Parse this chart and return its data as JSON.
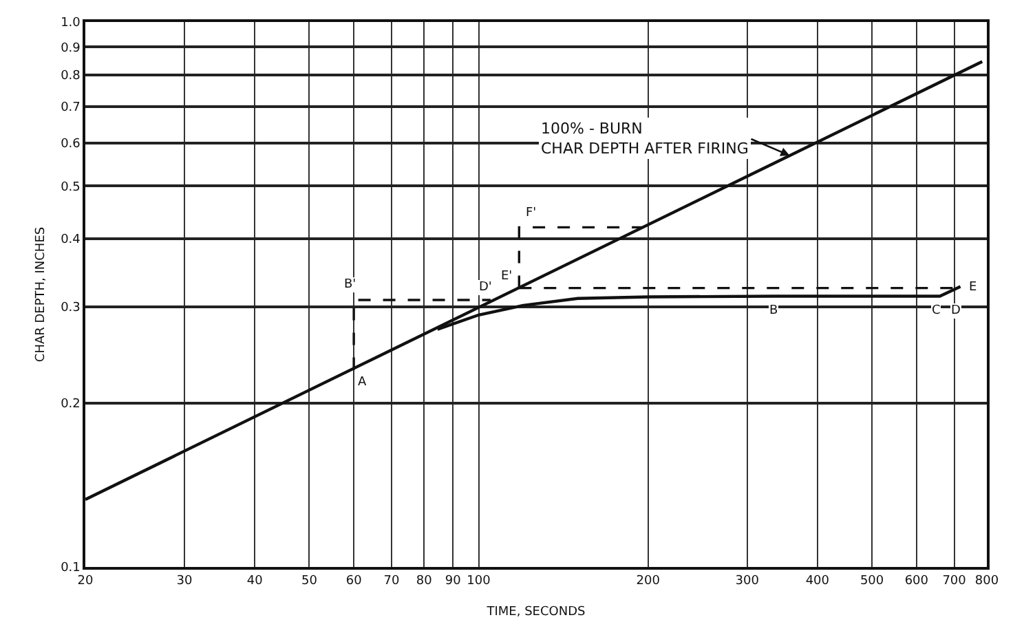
{
  "chart_data": {
    "type": "line",
    "xlabel": "TIME, SECONDS",
    "ylabel": "CHAR DEPTH, INCHES",
    "log": "xy",
    "grid": true,
    "line_style": "solid",
    "xlim": [
      20,
      800
    ],
    "ylim": [
      0.1,
      1.0
    ],
    "xticks": [
      20,
      30,
      40,
      50,
      60,
      70,
      80,
      90,
      100,
      200,
      300,
      400,
      500,
      600,
      700,
      800
    ],
    "yticks": [
      0.1,
      0.2,
      0.3,
      0.4,
      0.5,
      0.6,
      0.7,
      0.8,
      0.9,
      {
        "value": 1.0,
        "label": "1.0"
      }
    ],
    "series": [
      {
        "color": "#111111",
        "x": [
          20,
          785
        ],
        "values": [
          0.133,
          0.846
        ]
      },
      {
        "color": "#111111",
        "x": [
          84.5,
          100,
          120,
          150,
          200,
          334,
          500,
          660,
          718
        ],
        "values": [
          0.273,
          0.29,
          0.302,
          0.311,
          0.313,
          0.314,
          0.314,
          0.314,
          0.327
        ]
      },
      {
        "color": "#111111",
        "line_style": "dashed",
        "x": [
          60,
          60,
          105
        ],
        "values": [
          0.23,
          0.309,
          0.309
        ]
      },
      {
        "color": "#111111",
        "line_style": "dashed",
        "x": [
          118,
          718
        ],
        "values": [
          0.325,
          0.325
        ]
      },
      {
        "color": "#111111",
        "line_style": "dashed",
        "x": [
          118,
          118,
          198
        ],
        "values": [
          0.325,
          0.42,
          0.42
        ]
      }
    ],
    "annotations": [
      {
        "text": "100% - BURN\nCHAR DEPTH AFTER FIRING",
        "x": 357,
        "y": 0.569
      },
      {
        "text": "A",
        "x": 60,
        "y": 0.23
      },
      {
        "text": "B'",
        "x": 60,
        "y": 0.309
      },
      {
        "text": "D'",
        "x": 105,
        "y": 0.309
      },
      {
        "text": "E'",
        "x": 118,
        "y": 0.325
      },
      {
        "text": "F'",
        "x": 118,
        "y": 0.42
      },
      {
        "text": "E",
        "x": 718,
        "y": 0.325
      },
      {
        "text": "B",
        "x": 334,
        "y": 0.314
      },
      {
        "text": "C",
        "x": 660,
        "y": 0.314
      },
      {
        "text": "D",
        "x": 718,
        "y": 0.327
      }
    ]
  }
}
